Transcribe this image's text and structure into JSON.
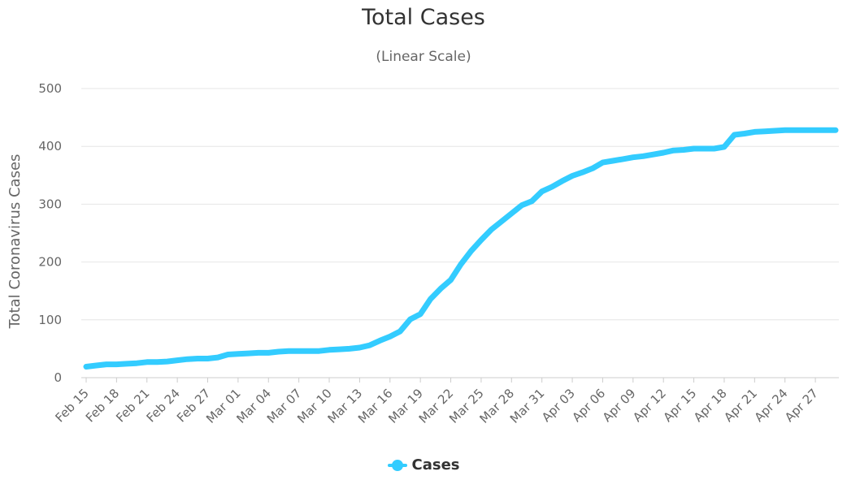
{
  "chart_data": {
    "type": "line",
    "title": "Total Cases",
    "subtitle": "(Linear Scale)",
    "xlabel": "",
    "ylabel": "Total Coronavirus Cases",
    "ylim": [
      0,
      500
    ],
    "yticks": [
      0,
      100,
      200,
      300,
      400,
      500
    ],
    "grid": true,
    "legend_position": "bottom-center",
    "x_tick_labels": [
      "Feb 15",
      "Feb 18",
      "Feb 21",
      "Feb 24",
      "Feb 27",
      "Mar 01",
      "Mar 04",
      "Mar 07",
      "Mar 10",
      "Mar 13",
      "Mar 16",
      "Mar 19",
      "Mar 22",
      "Mar 25",
      "Mar 28",
      "Mar 31",
      "Apr 03",
      "Apr 06",
      "Apr 09",
      "Apr 12",
      "Apr 15",
      "Apr 18",
      "Apr 21",
      "Apr 24",
      "Apr 27"
    ],
    "x": [
      "Feb 15",
      "Feb 16",
      "Feb 17",
      "Feb 18",
      "Feb 19",
      "Feb 20",
      "Feb 21",
      "Feb 22",
      "Feb 23",
      "Feb 24",
      "Feb 25",
      "Feb 26",
      "Feb 27",
      "Feb 28",
      "Feb 29",
      "Mar 01",
      "Mar 02",
      "Mar 03",
      "Mar 04",
      "Mar 05",
      "Mar 06",
      "Mar 07",
      "Mar 08",
      "Mar 09",
      "Mar 10",
      "Mar 11",
      "Mar 12",
      "Mar 13",
      "Mar 14",
      "Mar 15",
      "Mar 16",
      "Mar 17",
      "Mar 18",
      "Mar 19",
      "Mar 20",
      "Mar 21",
      "Mar 22",
      "Mar 23",
      "Mar 24",
      "Mar 25",
      "Mar 26",
      "Mar 27",
      "Mar 28",
      "Mar 29",
      "Mar 30",
      "Mar 31",
      "Apr 01",
      "Apr 02",
      "Apr 03",
      "Apr 04",
      "Apr 05",
      "Apr 06",
      "Apr 07",
      "Apr 08",
      "Apr 09",
      "Apr 10",
      "Apr 11",
      "Apr 12",
      "Apr 13",
      "Apr 14",
      "Apr 15",
      "Apr 16",
      "Apr 17",
      "Apr 18",
      "Apr 19",
      "Apr 20",
      "Apr 21",
      "Apr 22",
      "Apr 23",
      "Apr 24",
      "Apr 25",
      "Apr 26",
      "Apr 27",
      "Apr 28",
      "Apr 29"
    ],
    "series": [
      {
        "name": "Cases",
        "color": "#33ccff",
        "values": [
          19,
          21,
          23,
          23,
          24,
          25,
          27,
          27,
          28,
          30,
          32,
          33,
          33,
          35,
          40,
          41,
          42,
          43,
          43,
          45,
          46,
          46,
          46,
          46,
          48,
          49,
          50,
          52,
          56,
          64,
          71,
          80,
          101,
          110,
          136,
          154,
          169,
          196,
          219,
          238,
          256,
          270,
          284,
          298,
          305,
          322,
          330,
          340,
          349,
          355,
          362,
          372,
          375,
          378,
          381,
          383,
          386,
          389,
          393,
          394,
          396,
          396,
          396,
          399,
          420,
          422,
          425,
          426,
          427,
          428,
          428,
          428,
          428,
          428,
          428
        ]
      }
    ]
  }
}
